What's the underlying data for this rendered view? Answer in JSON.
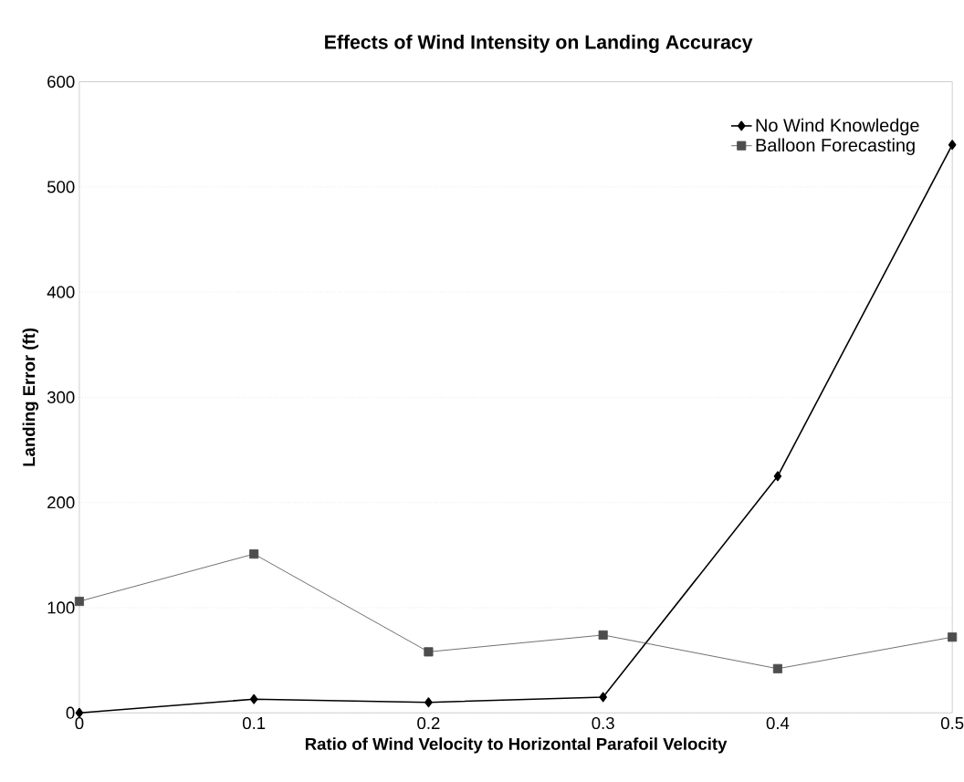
{
  "chart_data": {
    "type": "line",
    "title": "Effects of Wind Intensity on Landing Accuracy",
    "xlabel": "Ratio of Wind Velocity to Horizontal Parafoil Velocity",
    "ylabel": "Landing Error (ft)",
    "x": [
      0,
      0.1,
      0.2,
      0.3,
      0.4,
      0.5
    ],
    "series": [
      {
        "name": "No Wind Knowledge",
        "color": "#000000",
        "marker": "diamond",
        "values": [
          0,
          13,
          10,
          15,
          225,
          540
        ]
      },
      {
        "name": "Balloon Forecasting",
        "color": "#4d4d4d",
        "marker": "square",
        "values": [
          106,
          151,
          58,
          74,
          42,
          72
        ]
      }
    ],
    "xlim": [
      0,
      0.5
    ],
    "xticks": [
      0,
      0.1,
      0.2,
      0.3,
      0.4,
      0.5
    ],
    "ylim": [
      0,
      600
    ],
    "yticks": [
      0,
      100,
      200,
      300,
      400,
      500,
      600
    ],
    "grid": "y",
    "legend": "top right",
    "line_style": "solid"
  }
}
